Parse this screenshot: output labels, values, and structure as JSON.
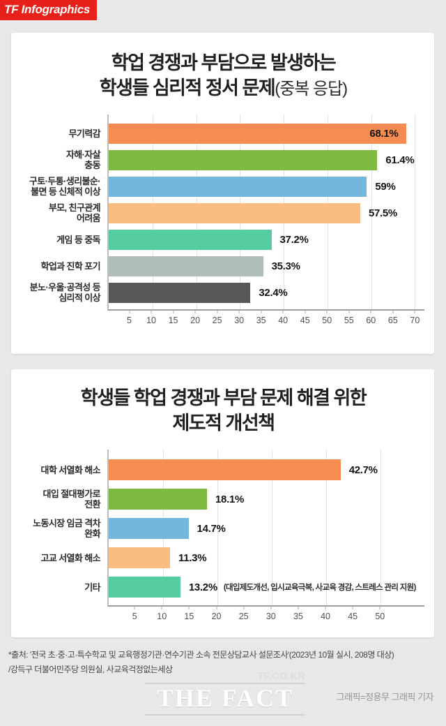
{
  "brand": {
    "label": "TF Infographics",
    "bg_color": "#e7211a"
  },
  "chart_data": [
    {
      "type": "bar",
      "orientation": "horizontal",
      "title_line1": "학업 경쟁과 부담으로 발생하는",
      "title_line2": "학생들 심리적 정서 문제",
      "title_suffix": "(중복 응답)",
      "unit": "%",
      "axis_range": [
        0,
        70
      ],
      "ticks": [
        5,
        10,
        15,
        20,
        25,
        30,
        35,
        40,
        45,
        50,
        55,
        60,
        65,
        70
      ],
      "gridlines": [
        10,
        20,
        30,
        40,
        50,
        60,
        70
      ],
      "legend": "none",
      "bars": [
        {
          "label": "무기력감",
          "value": 68.1,
          "display": "68.1%",
          "color": "#f68c51",
          "label_inside": true
        },
        {
          "label": "자해·자살\n충동",
          "value": 61.4,
          "display": "61.4%",
          "color": "#7dbb40",
          "label_inside": false
        },
        {
          "label": "구토·두통·생리불순·\n불면 등 신체적 이상",
          "value": 59,
          "display": "59%",
          "color": "#73b6de",
          "label_inside": false
        },
        {
          "label": "부모, 친구관계\n어려움",
          "value": 57.5,
          "display": "57.5%",
          "color": "#fabd81",
          "label_inside": false
        },
        {
          "label": "게임 등 중독",
          "value": 37.2,
          "display": "37.2%",
          "color": "#56cda0",
          "label_inside": false
        },
        {
          "label": "학업과 진학 포기",
          "value": 35.3,
          "display": "35.3%",
          "color": "#b0bfb8",
          "label_inside": false
        },
        {
          "label": "분노·우울·공격성 등\n심리적 이상",
          "value": 32.4,
          "display": "32.4%",
          "color": "#5a5857",
          "label_inside": false
        }
      ]
    },
    {
      "type": "bar",
      "orientation": "horizontal",
      "title_line1": "학생들 학업 경쟁과 부담 문제 해결 위한",
      "title_line2": "제도적 개선책",
      "title_suffix": "",
      "unit": "%",
      "axis_range": [
        0,
        50
      ],
      "ticks": [
        5,
        10,
        15,
        20,
        25,
        30,
        35,
        40,
        45,
        50
      ],
      "gridlines": [
        10,
        20,
        30,
        40,
        50
      ],
      "legend": "none",
      "bars": [
        {
          "label": "대학 서열화 해소",
          "value": 42.7,
          "display": "42.7%",
          "color": "#f68c51",
          "label_inside": false
        },
        {
          "label": "대입 절대평가로\n전환",
          "value": 18.1,
          "display": "18.1%",
          "color": "#7dbb40",
          "label_inside": false
        },
        {
          "label": "노동시장 임금 격차\n완화",
          "value": 14.7,
          "display": "14.7%",
          "color": "#73b6de",
          "label_inside": false
        },
        {
          "label": "고교 서열화 해소",
          "value": 11.3,
          "display": "11.3%",
          "color": "#fabd81",
          "label_inside": false
        },
        {
          "label": "기타",
          "value": 13.2,
          "display": "13.2%",
          "color": "#56cda0",
          "label_inside": false,
          "note": "(대입제도개선, 입시교육극복, 사교육 경감, 스트레스 관리 지원)"
        }
      ]
    }
  ],
  "footer": {
    "source_line1": "*출처: '전국 초·중·고·특수학교 및 교육행정기관·연수기관 소속 전문상담교사 설문조사'(2023년 10월 실시, 208명 대상)",
    "source_line2": "/강득구 더불어민주당 의원실, 사교육걱정없는세상",
    "site": "TF.CO.KR",
    "logo": "THE FACT",
    "credit": "그래픽=정용무 그래픽 기자"
  }
}
